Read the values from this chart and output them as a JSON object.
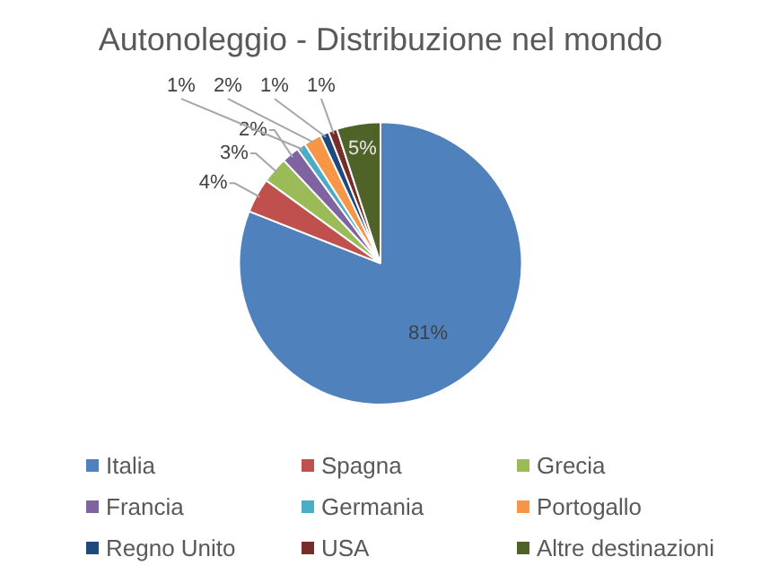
{
  "chart_data": {
    "type": "pie",
    "title": "Autonoleggio - Distribuzione nel mondo",
    "categories": [
      "Italia",
      "Spagna",
      "Grecia",
      "Francia",
      "Germania",
      "Portogallo",
      "Regno Unito",
      "USA",
      "Altre destinazioni"
    ],
    "values": [
      81,
      4,
      3,
      2,
      1,
      2,
      1,
      1,
      5
    ],
    "colors": [
      "#4f81bd",
      "#c0504d",
      "#9bbb59",
      "#8064a2",
      "#4bacc6",
      "#f79646",
      "#1f497d",
      "#772c2a",
      "#4f6228"
    ],
    "value_labels": [
      "81%",
      "4%",
      "3%",
      "2%",
      "1%",
      "2%",
      "1%",
      "1%",
      "5%"
    ],
    "legend": "bottom"
  }
}
